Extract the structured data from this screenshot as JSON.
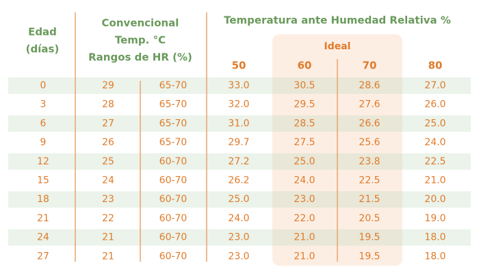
{
  "header": {
    "age": [
      "Edad",
      "(días)"
    ],
    "conventional": [
      "Convencional",
      "Temp. °C",
      "Rangos de HR (%)"
    ],
    "group_title": "Temperatura ante Humedad Relativa %",
    "ideal": "Ideal",
    "humidity_columns": [
      "50",
      "60",
      "70",
      "80"
    ]
  },
  "table": {
    "rows": [
      [
        "0",
        "29",
        "65-70",
        "33.0",
        "30.5",
        "28.6",
        "27.0"
      ],
      [
        "3",
        "28",
        "65-70",
        "32.0",
        "29.5",
        "27.6",
        "26.0"
      ],
      [
        "6",
        "27",
        "65-70",
        "31.0",
        "28.5",
        "26.6",
        "25.0"
      ],
      [
        "9",
        "26",
        "65-70",
        "29.7",
        "27.5",
        "25.6",
        "24.0"
      ],
      [
        "12",
        "25",
        "60-70",
        "27.2",
        "25.0",
        "23.8",
        "22.5"
      ],
      [
        "15",
        "24",
        "60-70",
        "26.2",
        "24.0",
        "22.5",
        "21.0"
      ],
      [
        "18",
        "23",
        "60-70",
        "25.0",
        "23.0",
        "21.5",
        "20.0"
      ],
      [
        "21",
        "22",
        "60-70",
        "24.0",
        "22.0",
        "20.5",
        "19.0"
      ],
      [
        "24",
        "21",
        "60-70",
        "23.0",
        "21.0",
        "19.5",
        "18.0"
      ],
      [
        "27",
        "21",
        "60-70",
        "23.0",
        "21.0",
        "19.5",
        "18.0"
      ]
    ]
  }
}
